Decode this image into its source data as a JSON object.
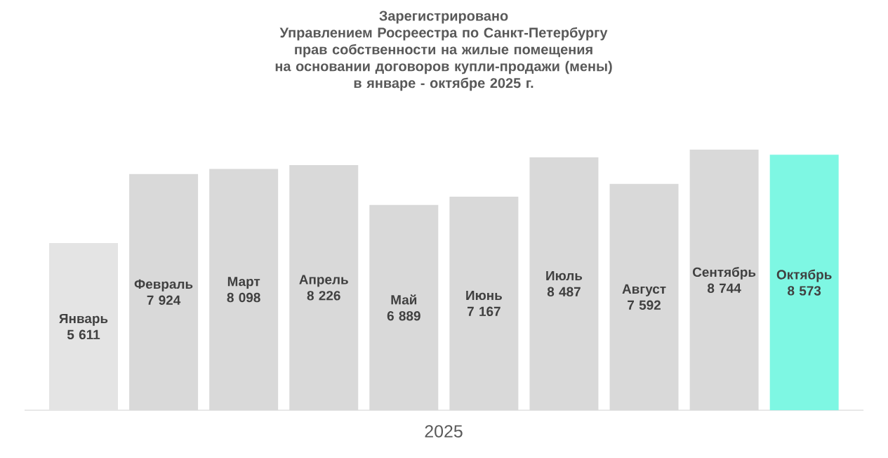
{
  "chart_data": {
    "type": "bar",
    "title": "Зарегистрировано\nУправлением Росреестра по Санкт-Петербургу\nправ собственности на жилые помещения\nна основании договоров купли-продажи (мены)\nв январе - октябре 2025 г.",
    "xlabel": "2025",
    "categories": [
      "Январь",
      "Февраль",
      "Март",
      "Апрель",
      "Май",
      "Июнь",
      "Июль",
      "Август",
      "Сентябрь",
      "Октябрь"
    ],
    "values": [
      5611,
      7924,
      8098,
      8226,
      6889,
      7167,
      8487,
      7592,
      8744,
      8573
    ],
    "colors": [
      "#e4e4e4",
      "#d9d9d9",
      "#d9d9d9",
      "#d9d9d9",
      "#d9d9d9",
      "#d9d9d9",
      "#d9d9d9",
      "#d9d9d9",
      "#d9d9d9",
      "#7ef7e3"
    ],
    "value_labels": [
      "5 611",
      "7 924",
      "8 098",
      "8 226",
      "6 889",
      "7 167",
      "8 487",
      "7 592",
      "8 744",
      "8 573"
    ]
  }
}
